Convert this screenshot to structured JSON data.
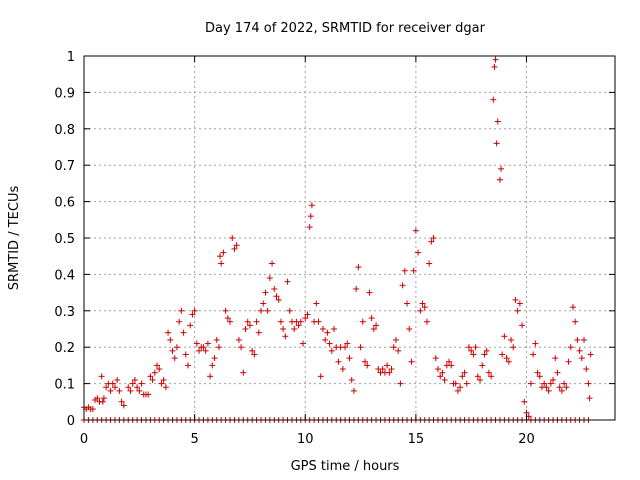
{
  "chart_data": {
    "type": "scatter",
    "title": "Day 174 of 2022, SRMTID for receiver dgar",
    "xlabel": "GPS time / hours",
    "ylabel": "SRMTID / TECUs",
    "xlim": [
      0,
      24
    ],
    "ylim": [
      0,
      1
    ],
    "xticks": [
      0,
      5,
      10,
      15,
      20
    ],
    "yticks": [
      0,
      0.1,
      0.2,
      0.3,
      0.4,
      0.5,
      0.6,
      0.7,
      0.8,
      0.9,
      1
    ],
    "xtick_labels": [
      "0",
      "5",
      "10",
      "15",
      "20"
    ],
    "ytick_labels": [
      "0",
      "0.1",
      "0.2",
      "0.3",
      "0.4",
      "0.5",
      "0.6",
      "0.7",
      "0.8",
      "0.9",
      "1"
    ],
    "grid": true,
    "marker": "+",
    "color": "#cc0000",
    "series": [
      {
        "name": "SRMTID",
        "points": [
          [
            0.0,
            0.035
          ],
          [
            0.1,
            0.03
          ],
          [
            0.2,
            0.035
          ],
          [
            0.3,
            0.03
          ],
          [
            0.4,
            0.03
          ],
          [
            0.5,
            0.055
          ],
          [
            0.6,
            0.06
          ],
          [
            0.7,
            0.05
          ],
          [
            0.8,
            0.12
          ],
          [
            0.85,
            0.05
          ],
          [
            0.9,
            0.06
          ],
          [
            1.0,
            0.09
          ],
          [
            1.1,
            0.1
          ],
          [
            1.2,
            0.08
          ],
          [
            1.3,
            0.1
          ],
          [
            1.4,
            0.09
          ],
          [
            1.5,
            0.11
          ],
          [
            1.6,
            0.08
          ],
          [
            1.7,
            0.05
          ],
          [
            1.8,
            0.04
          ],
          [
            2.0,
            0.09
          ],
          [
            2.1,
            0.08
          ],
          [
            2.2,
            0.1
          ],
          [
            2.3,
            0.11
          ],
          [
            2.4,
            0.09
          ],
          [
            2.5,
            0.08
          ],
          [
            2.6,
            0.1
          ],
          [
            2.7,
            0.07
          ],
          [
            2.8,
            0.07
          ],
          [
            2.9,
            0.07
          ],
          [
            3.0,
            0.12
          ],
          [
            3.1,
            0.11
          ],
          [
            3.2,
            0.13
          ],
          [
            3.3,
            0.15
          ],
          [
            3.4,
            0.14
          ],
          [
            3.5,
            0.1
          ],
          [
            3.6,
            0.11
          ],
          [
            3.7,
            0.09
          ],
          [
            3.8,
            0.24
          ],
          [
            3.9,
            0.22
          ],
          [
            4.0,
            0.19
          ],
          [
            4.1,
            0.17
          ],
          [
            4.2,
            0.2
          ],
          [
            4.3,
            0.27
          ],
          [
            4.4,
            0.3
          ],
          [
            4.5,
            0.24
          ],
          [
            4.6,
            0.18
          ],
          [
            4.7,
            0.15
          ],
          [
            4.8,
            0.26
          ],
          [
            4.9,
            0.29
          ],
          [
            5.0,
            0.3
          ],
          [
            5.1,
            0.21
          ],
          [
            5.2,
            0.19
          ],
          [
            5.3,
            0.2
          ],
          [
            5.4,
            0.2
          ],
          [
            5.5,
            0.19
          ],
          [
            5.6,
            0.21
          ],
          [
            5.7,
            0.12
          ],
          [
            5.8,
            0.15
          ],
          [
            5.9,
            0.17
          ],
          [
            6.0,
            0.22
          ],
          [
            6.1,
            0.2
          ],
          [
            6.15,
            0.45
          ],
          [
            6.2,
            0.43
          ],
          [
            6.3,
            0.46
          ],
          [
            6.4,
            0.3
          ],
          [
            6.5,
            0.28
          ],
          [
            6.6,
            0.27
          ],
          [
            6.7,
            0.5
          ],
          [
            6.8,
            0.47
          ],
          [
            6.9,
            0.48
          ],
          [
            7.0,
            0.22
          ],
          [
            7.1,
            0.2
          ],
          [
            7.2,
            0.13
          ],
          [
            7.3,
            0.25
          ],
          [
            7.4,
            0.27
          ],
          [
            7.5,
            0.26
          ],
          [
            7.6,
            0.19
          ],
          [
            7.7,
            0.18
          ],
          [
            7.8,
            0.27
          ],
          [
            7.9,
            0.24
          ],
          [
            8.0,
            0.3
          ],
          [
            8.1,
            0.32
          ],
          [
            8.2,
            0.35
          ],
          [
            8.3,
            0.3
          ],
          [
            8.4,
            0.39
          ],
          [
            8.5,
            0.43
          ],
          [
            8.6,
            0.36
          ],
          [
            8.7,
            0.34
          ],
          [
            8.8,
            0.33
          ],
          [
            8.9,
            0.27
          ],
          [
            9.0,
            0.25
          ],
          [
            9.1,
            0.23
          ],
          [
            9.2,
            0.38
          ],
          [
            9.3,
            0.3
          ],
          [
            9.4,
            0.27
          ],
          [
            9.5,
            0.25
          ],
          [
            9.6,
            0.27
          ],
          [
            9.7,
            0.26
          ],
          [
            9.8,
            0.27
          ],
          [
            9.9,
            0.21
          ],
          [
            10.0,
            0.28
          ],
          [
            10.1,
            0.29
          ],
          [
            10.2,
            0.53
          ],
          [
            10.25,
            0.56
          ],
          [
            10.3,
            0.59
          ],
          [
            10.4,
            0.27
          ],
          [
            10.5,
            0.32
          ],
          [
            10.6,
            0.27
          ],
          [
            10.7,
            0.12
          ],
          [
            10.8,
            0.25
          ],
          [
            10.9,
            0.22
          ],
          [
            11.0,
            0.24
          ],
          [
            11.1,
            0.21
          ],
          [
            11.2,
            0.19
          ],
          [
            11.3,
            0.25
          ],
          [
            11.4,
            0.2
          ],
          [
            11.5,
            0.16
          ],
          [
            11.6,
            0.2
          ],
          [
            11.7,
            0.14
          ],
          [
            11.8,
            0.2
          ],
          [
            11.9,
            0.21
          ],
          [
            12.0,
            0.17
          ],
          [
            12.1,
            0.11
          ],
          [
            12.2,
            0.08
          ],
          [
            12.3,
            0.36
          ],
          [
            12.4,
            0.42
          ],
          [
            12.5,
            0.2
          ],
          [
            12.6,
            0.27
          ],
          [
            12.7,
            0.16
          ],
          [
            12.8,
            0.15
          ],
          [
            12.9,
            0.35
          ],
          [
            13.0,
            0.28
          ],
          [
            13.1,
            0.25
          ],
          [
            13.2,
            0.26
          ],
          [
            13.3,
            0.14
          ],
          [
            13.4,
            0.13
          ],
          [
            13.5,
            0.14
          ],
          [
            13.6,
            0.13
          ],
          [
            13.7,
            0.15
          ],
          [
            13.8,
            0.13
          ],
          [
            13.9,
            0.14
          ],
          [
            14.0,
            0.2
          ],
          [
            14.1,
            0.22
          ],
          [
            14.2,
            0.19
          ],
          [
            14.3,
            0.1
          ],
          [
            14.4,
            0.37
          ],
          [
            14.5,
            0.41
          ],
          [
            14.6,
            0.32
          ],
          [
            14.7,
            0.25
          ],
          [
            14.8,
            0.16
          ],
          [
            14.9,
            0.41
          ],
          [
            15.0,
            0.52
          ],
          [
            15.1,
            0.46
          ],
          [
            15.2,
            0.3
          ],
          [
            15.3,
            0.32
          ],
          [
            15.4,
            0.31
          ],
          [
            15.5,
            0.27
          ],
          [
            15.6,
            0.43
          ],
          [
            15.7,
            0.49
          ],
          [
            15.8,
            0.5
          ],
          [
            15.9,
            0.17
          ],
          [
            16.0,
            0.14
          ],
          [
            16.1,
            0.12
          ],
          [
            16.2,
            0.13
          ],
          [
            16.3,
            0.11
          ],
          [
            16.4,
            0.15
          ],
          [
            16.5,
            0.16
          ],
          [
            16.6,
            0.15
          ],
          [
            16.7,
            0.1
          ],
          [
            16.8,
            0.1
          ],
          [
            16.9,
            0.08
          ],
          [
            17.0,
            0.09
          ],
          [
            17.1,
            0.12
          ],
          [
            17.2,
            0.13
          ],
          [
            17.3,
            0.1
          ],
          [
            17.4,
            0.2
          ],
          [
            17.5,
            0.19
          ],
          [
            17.6,
            0.18
          ],
          [
            17.7,
            0.2
          ],
          [
            17.8,
            0.12
          ],
          [
            17.9,
            0.11
          ],
          [
            18.0,
            0.15
          ],
          [
            18.1,
            0.18
          ],
          [
            18.2,
            0.19
          ],
          [
            18.3,
            0.13
          ],
          [
            18.4,
            0.12
          ],
          [
            18.5,
            0.88
          ],
          [
            18.55,
            0.97
          ],
          [
            18.6,
            0.99
          ],
          [
            18.65,
            0.76
          ],
          [
            18.7,
            0.82
          ],
          [
            18.8,
            0.66
          ],
          [
            18.85,
            0.69
          ],
          [
            18.9,
            0.18
          ],
          [
            19.0,
            0.23
          ],
          [
            19.1,
            0.17
          ],
          [
            19.2,
            0.16
          ],
          [
            19.3,
            0.22
          ],
          [
            19.4,
            0.2
          ],
          [
            19.5,
            0.33
          ],
          [
            19.6,
            0.3
          ],
          [
            19.7,
            0.32
          ],
          [
            19.8,
            0.26
          ],
          [
            19.9,
            0.05
          ],
          [
            20.0,
            0.02
          ],
          [
            20.1,
            0.01
          ],
          [
            20.2,
            0.1
          ],
          [
            20.3,
            0.18
          ],
          [
            20.4,
            0.21
          ],
          [
            20.5,
            0.13
          ],
          [
            20.6,
            0.12
          ],
          [
            20.7,
            0.09
          ],
          [
            20.8,
            0.1
          ],
          [
            20.9,
            0.09
          ],
          [
            21.0,
            0.08
          ],
          [
            21.1,
            0.1
          ],
          [
            21.2,
            0.11
          ],
          [
            21.3,
            0.17
          ],
          [
            21.4,
            0.13
          ],
          [
            21.5,
            0.09
          ],
          [
            21.6,
            0.08
          ],
          [
            21.7,
            0.1
          ],
          [
            21.8,
            0.09
          ],
          [
            21.9,
            0.16
          ],
          [
            22.0,
            0.2
          ],
          [
            22.1,
            0.31
          ],
          [
            22.2,
            0.27
          ],
          [
            22.3,
            0.22
          ],
          [
            22.4,
            0.19
          ],
          [
            22.5,
            0.17
          ],
          [
            22.6,
            0.22
          ],
          [
            22.7,
            0.14
          ],
          [
            22.8,
            0.1
          ],
          [
            22.85,
            0.06
          ],
          [
            22.9,
            0.18
          ]
        ],
        "zero_x_range": [
          0,
          22.9
        ],
        "zero_step": 0.2
      }
    ]
  }
}
